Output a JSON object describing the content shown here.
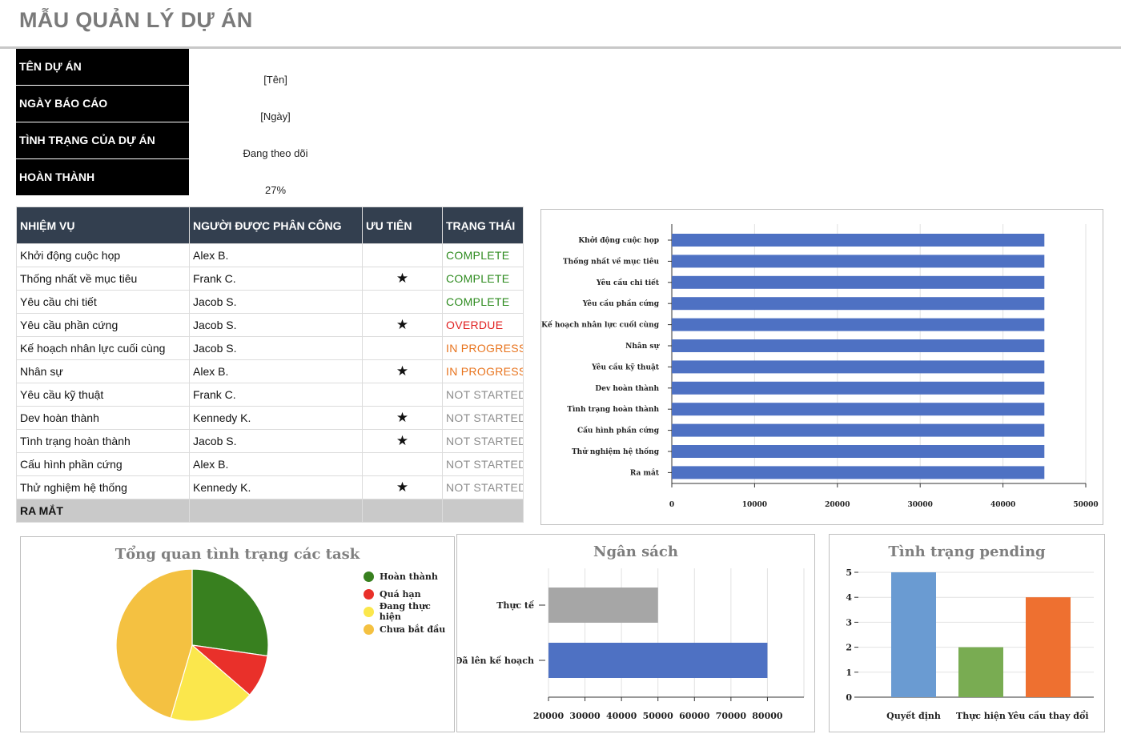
{
  "title": "MẪU QUẢN LÝ DỰ ÁN",
  "info": [
    {
      "label": "TÊN DỰ ÁN",
      "value": "[Tên]"
    },
    {
      "label": "NGÀY BÁO CÁO",
      "value": "[Ngày]"
    },
    {
      "label": "TÌNH TRẠNG CỦA DỰ ÁN",
      "value": "Đang theo dõi"
    },
    {
      "label": "HOÀN THÀNH",
      "value": "27%"
    }
  ],
  "table": {
    "headers": [
      "NHIỆM VỤ",
      "NGƯỜI ĐƯỢC PHÂN CÔNG",
      "ƯU TIÊN",
      "TRẠNG THÁI"
    ],
    "rows": [
      {
        "task": "Khởi động cuộc họp",
        "assignee": "Alex B.",
        "priority": "",
        "status": "COMPLETE"
      },
      {
        "task": "Thống nhất về mục tiêu",
        "assignee": "Frank C.",
        "priority": "★",
        "status": "COMPLETE"
      },
      {
        "task": "Yêu cầu chi tiết",
        "assignee": "Jacob S.",
        "priority": "",
        "status": "COMPLETE"
      },
      {
        "task": "Yêu cầu phần cứng",
        "assignee": "Jacob S.",
        "priority": "★",
        "status": "OVERDUE"
      },
      {
        "task": "Kế hoạch nhân lực cuối cùng",
        "assignee": "Jacob S.",
        "priority": "",
        "status": "IN PROGRESS"
      },
      {
        "task": "Nhân sự",
        "assignee": "Alex B.",
        "priority": "★",
        "status": "IN PROGRESS"
      },
      {
        "task": "Yêu cầu kỹ thuật",
        "assignee": "Frank C.",
        "priority": "",
        "status": "NOT STARTED"
      },
      {
        "task": "Dev hoàn thành",
        "assignee": "Kennedy K.",
        "priority": "★",
        "status": "NOT STARTED"
      },
      {
        "task": "Tình trạng hoàn thành",
        "assignee": "Jacob S.",
        "priority": "★",
        "status": "NOT STARTED"
      },
      {
        "task": "Cấu hình phần cứng",
        "assignee": "Alex B.",
        "priority": "",
        "status": "NOT STARTED"
      },
      {
        "task": "Thử nghiệm hệ thống",
        "assignee": "Kennedy K.",
        "priority": "★",
        "status": "NOT STARTED"
      }
    ],
    "footer": "RA MẮT"
  },
  "status_colors": {
    "COMPLETE": "#2e8b1f",
    "OVERDUE": "#e02020",
    "IN PROGRESS": "#e8741e",
    "NOT STARTED": "#8c8c8c"
  },
  "chart_data": [
    {
      "type": "bar",
      "orientation": "horizontal",
      "title": "",
      "categories": [
        "Khởi động cuộc họp",
        "Thống nhất về mục tiêu",
        "Yêu cầu chi tiết",
        "Yêu cầu phần cứng",
        "Kế hoạch nhân lực cuối cùng",
        "Nhân sự",
        "Yêu cầu kỹ thuật",
        "Dev hoàn thành",
        "Tình trạng hoàn thành",
        "Cấu hình phần cứng",
        "Thử nghiệm hệ thống",
        "Ra mắt"
      ],
      "values": [
        45000,
        45000,
        45000,
        45000,
        45000,
        45000,
        45000,
        45000,
        45000,
        45000,
        45000,
        45000
      ],
      "xlim": [
        0,
        50000
      ],
      "xticks": [
        0,
        10000,
        20000,
        30000,
        40000,
        50000
      ],
      "color": "#4e71c3",
      "grid": true
    },
    {
      "type": "pie",
      "title": "Tổng quan tình trạng các task",
      "labels": [
        "Hoàn thành",
        "Quá hạn",
        "Đang thực hiện",
        "Chưa bắt đầu"
      ],
      "values": [
        3,
        1,
        2,
        5
      ],
      "colors": [
        "#38801f",
        "#e9302a",
        "#fbe74c",
        "#f4c141"
      ],
      "legend": "right"
    },
    {
      "type": "bar",
      "orientation": "horizontal",
      "title": "Ngân sách",
      "categories": [
        "Thực tế",
        "Đã lên kế hoạch"
      ],
      "values": [
        50000,
        80000
      ],
      "colors": [
        "#a6a6a6",
        "#4e71c3"
      ],
      "xlim": [
        20000,
        90000
      ],
      "xticks": [
        20000,
        30000,
        40000,
        50000,
        60000,
        70000,
        80000
      ],
      "grid": true
    },
    {
      "type": "bar",
      "title": "Tình trạng pending",
      "categories": [
        "Quyết định",
        "Thực hiện",
        "Yêu cầu thay đổi"
      ],
      "values": [
        5,
        2,
        4
      ],
      "colors": [
        "#6a9bd2",
        "#79ac52",
        "#ee7030"
      ],
      "ylim": [
        0,
        5
      ],
      "yticks": [
        0,
        1,
        2,
        3,
        4,
        5
      ],
      "grid": true
    }
  ]
}
